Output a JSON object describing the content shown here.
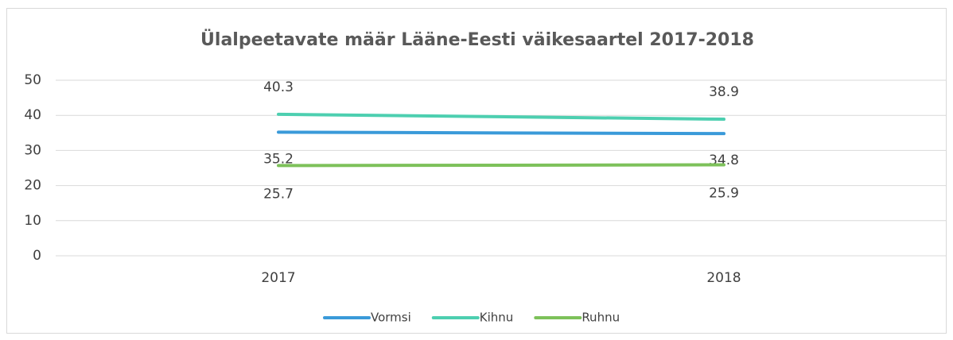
{
  "chart_data": {
    "type": "line",
    "title": "Ülalpeetavate määr Lääne-Eesti väikesaartel 2017-2018",
    "categories": [
      "2017",
      "2018"
    ],
    "series": [
      {
        "name": "Vormsi",
        "color": "#3a9ad9",
        "values": [
          35.2,
          34.8
        ]
      },
      {
        "name": "Kihnu",
        "color": "#4dcfb0",
        "values": [
          40.3,
          38.9
        ]
      },
      {
        "name": "Ruhnu",
        "color": "#7dc15a",
        "values": [
          25.7,
          25.9
        ]
      }
    ],
    "ylim": [
      0,
      50
    ],
    "yticks": [
      0,
      10,
      20,
      30,
      40,
      50
    ],
    "grid": true,
    "legend": "bottom"
  }
}
